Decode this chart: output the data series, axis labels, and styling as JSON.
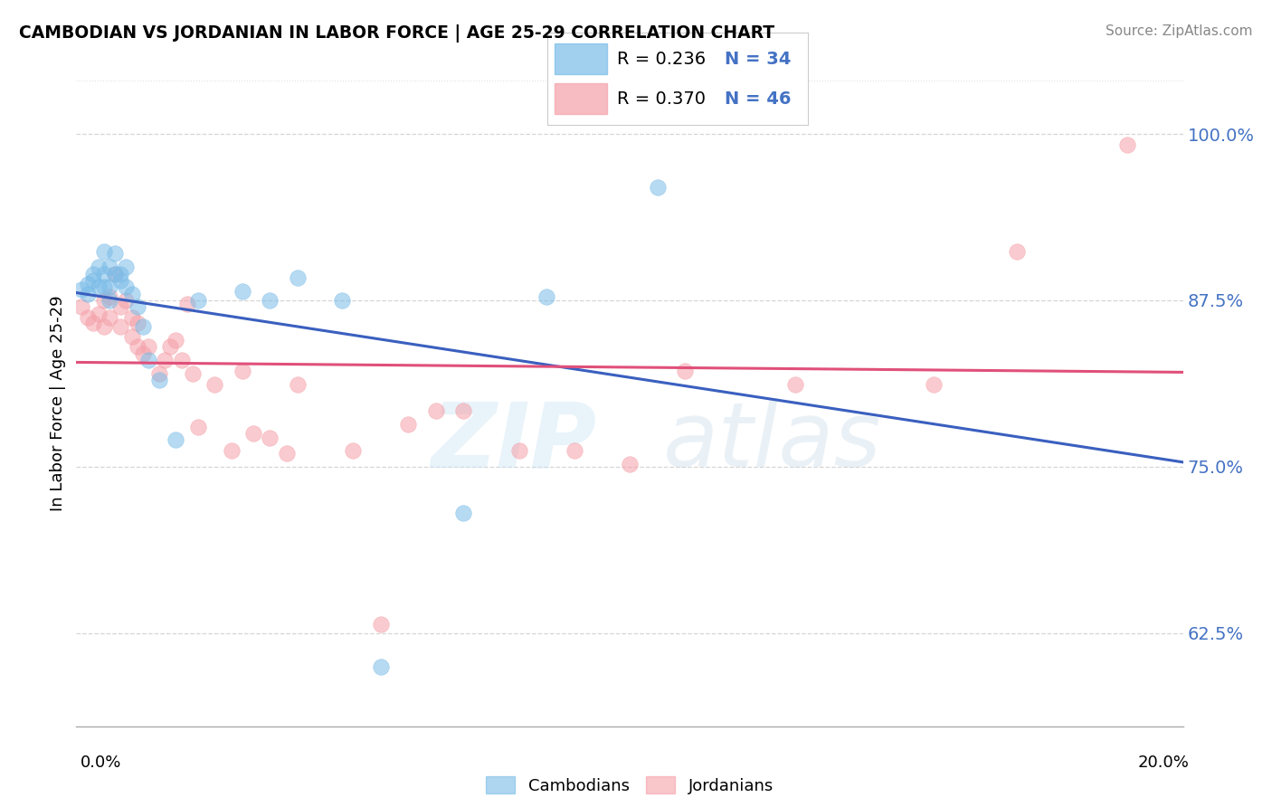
{
  "title": "CAMBODIAN VS JORDANIAN IN LABOR FORCE | AGE 25-29 CORRELATION CHART",
  "source": "Source: ZipAtlas.com",
  "ylabel": "In Labor Force | Age 25-29",
  "ytick_vals": [
    0.625,
    0.75,
    0.875,
    1.0
  ],
  "ytick_labels": [
    "62.5%",
    "75.0%",
    "87.5%",
    "100.0%"
  ],
  "xlim": [
    0.0,
    0.2
  ],
  "ylim": [
    0.555,
    1.04
  ],
  "cambodian_color": "#7abce8",
  "jordanian_color": "#f5a0a8",
  "blue_line_color": "#3a5fbf",
  "pink_line_color": "#e0507a",
  "legend_R_cambodian": "R = 0.236",
  "legend_N_cambodian": "N = 34",
  "legend_R_jordanian": "R = 0.370",
  "legend_N_jordanian": "N = 46",
  "cambodian_x": [
    0.001,
    0.002,
    0.002,
    0.003,
    0.003,
    0.004,
    0.004,
    0.005,
    0.005,
    0.005,
    0.006,
    0.006,
    0.006,
    0.007,
    0.007,
    0.008,
    0.008,
    0.009,
    0.009,
    0.01,
    0.011,
    0.012,
    0.013,
    0.015,
    0.018,
    0.022,
    0.03,
    0.035,
    0.04,
    0.048,
    0.055,
    0.07,
    0.085,
    0.105
  ],
  "cambodian_y": [
    0.883,
    0.887,
    0.88,
    0.895,
    0.89,
    0.9,
    0.885,
    0.912,
    0.895,
    0.885,
    0.9,
    0.885,
    0.875,
    0.91,
    0.895,
    0.895,
    0.89,
    0.885,
    0.9,
    0.88,
    0.87,
    0.855,
    0.83,
    0.815,
    0.77,
    0.875,
    0.882,
    0.875,
    0.892,
    0.875,
    0.6,
    0.715,
    0.878,
    0.96
  ],
  "jordanian_x": [
    0.001,
    0.002,
    0.003,
    0.004,
    0.005,
    0.005,
    0.006,
    0.006,
    0.007,
    0.008,
    0.008,
    0.009,
    0.01,
    0.01,
    0.011,
    0.011,
    0.012,
    0.013,
    0.015,
    0.016,
    0.017,
    0.018,
    0.019,
    0.02,
    0.021,
    0.022,
    0.025,
    0.028,
    0.03,
    0.032,
    0.035,
    0.038,
    0.04,
    0.05,
    0.055,
    0.06,
    0.065,
    0.07,
    0.08,
    0.09,
    0.1,
    0.11,
    0.13,
    0.155,
    0.17,
    0.19
  ],
  "jordanian_y": [
    0.87,
    0.862,
    0.858,
    0.865,
    0.875,
    0.855,
    0.878,
    0.862,
    0.895,
    0.87,
    0.855,
    0.875,
    0.862,
    0.848,
    0.858,
    0.84,
    0.835,
    0.84,
    0.82,
    0.83,
    0.84,
    0.845,
    0.83,
    0.872,
    0.82,
    0.78,
    0.812,
    0.762,
    0.822,
    0.775,
    0.772,
    0.76,
    0.812,
    0.762,
    0.632,
    0.782,
    0.792,
    0.792,
    0.762,
    0.762,
    0.752,
    0.822,
    0.812,
    0.812,
    0.912,
    0.992
  ],
  "watermark_zip": "ZIP",
  "watermark_atlas": "atlas",
  "background_color": "#ffffff",
  "grid_color": "#cccccc",
  "tick_color": "#4472c4"
}
